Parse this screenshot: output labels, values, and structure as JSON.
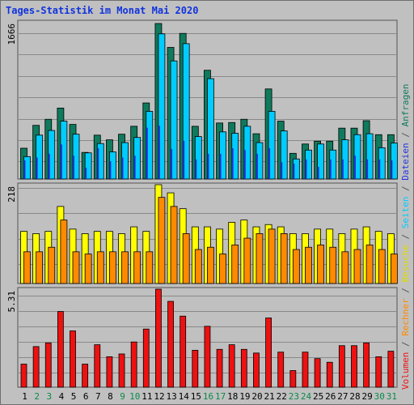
{
  "title": "Tages-Statistik im Monat Mai 2020",
  "colors": {
    "background": "#c0c0c0",
    "frame": "#6f6f6f",
    "gridline": "#8a8a8a",
    "anfragen": "#0f7a5c",
    "dateien": "#00ccff",
    "seiten": "#2233dd",
    "besuche": "#ffff00",
    "rechner": "#ff8a00",
    "volumen": "#ee1111",
    "day_weekday": "#000000",
    "day_weekend": "#0a8a4a"
  },
  "chart_data": [
    {
      "type": "bar",
      "panel": "top",
      "max_label": "1666",
      "ylim": [
        0,
        1666
      ],
      "categories": [
        "1",
        "2",
        "3",
        "4",
        "5",
        "6",
        "7",
        "8",
        "9",
        "10",
        "11",
        "12",
        "13",
        "14",
        "15",
        "16",
        "17",
        "18",
        "19",
        "20",
        "21",
        "22",
        "23",
        "24",
        "25",
        "26",
        "27",
        "28",
        "29",
        "30",
        "31"
      ],
      "series": [
        {
          "name": "Anfragen",
          "values": [
            330,
            575,
            640,
            760,
            585,
            285,
            470,
            420,
            480,
            565,
            815,
            1666,
            1410,
            1560,
            565,
            1165,
            600,
            605,
            640,
            485,
            965,
            620,
            275,
            375,
            405,
            405,
            545,
            545,
            625,
            475,
            475
          ]
        },
        {
          "name": "Dateien",
          "values": [
            240,
            470,
            520,
            620,
            480,
            280,
            380,
            290,
            390,
            445,
            725,
            1555,
            1265,
            1450,
            455,
            1075,
            505,
            490,
            565,
            390,
            725,
            515,
            215,
            310,
            375,
            310,
            420,
            475,
            485,
            335,
            385
          ]
        },
        {
          "name": "Seiten",
          "values": [
            200,
            230,
            270,
            370,
            250,
            120,
            330,
            190,
            230,
            250,
            550,
            570,
            320,
            410,
            210,
            270,
            270,
            330,
            310,
            270,
            330,
            180,
            165,
            210,
            130,
            210,
            210,
            250,
            210,
            210,
            200
          ]
        }
      ]
    },
    {
      "type": "bar",
      "panel": "middle",
      "max_label": "218",
      "ylim": [
        0,
        218
      ],
      "categories": [
        "1",
        "2",
        "3",
        "4",
        "5",
        "6",
        "7",
        "8",
        "9",
        "10",
        "11",
        "12",
        "13",
        "14",
        "15",
        "16",
        "17",
        "18",
        "19",
        "20",
        "21",
        "22",
        "23",
        "24",
        "25",
        "26",
        "27",
        "28",
        "29",
        "30",
        "31"
      ],
      "series": [
        {
          "name": "Besuche",
          "values": [
            115,
            110,
            115,
            170,
            120,
            110,
            115,
            115,
            110,
            125,
            115,
            218,
            200,
            165,
            125,
            125,
            120,
            135,
            140,
            125,
            130,
            125,
            110,
            110,
            120,
            120,
            110,
            120,
            125,
            115,
            110
          ]
        },
        {
          "name": "Rechner",
          "values": [
            70,
            70,
            80,
            140,
            70,
            65,
            70,
            70,
            70,
            70,
            70,
            190,
            170,
            110,
            75,
            80,
            65,
            85,
            100,
            110,
            120,
            110,
            75,
            80,
            85,
            80,
            70,
            75,
            85,
            75,
            65
          ]
        }
      ]
    },
    {
      "type": "bar",
      "panel": "bottom",
      "max_label": "5.31",
      "ylim": [
        0,
        5.31
      ],
      "categories": [
        "1",
        "2",
        "3",
        "4",
        "5",
        "6",
        "7",
        "8",
        "9",
        "10",
        "11",
        "12",
        "13",
        "14",
        "15",
        "16",
        "17",
        "18",
        "19",
        "20",
        "21",
        "22",
        "23",
        "24",
        "25",
        "26",
        "27",
        "28",
        "29",
        "30",
        "31"
      ],
      "series": [
        {
          "name": "Volumen",
          "values": [
            1.25,
            2.2,
            2.4,
            4.1,
            3.05,
            1.25,
            2.3,
            1.65,
            1.8,
            2.45,
            3.15,
            5.31,
            4.65,
            3.85,
            2.0,
            3.3,
            2.05,
            2.3,
            2.05,
            1.85,
            3.75,
            1.9,
            0.9,
            1.9,
            1.55,
            1.35,
            2.25,
            2.25,
            2.4,
            1.65,
            1.95
          ]
        }
      ]
    }
  ],
  "right_axis_labels": [
    {
      "text": "Volumen",
      "color": "#ee1111"
    },
    {
      "text": "/",
      "color": "#555555"
    },
    {
      "text": "Rechner",
      "color": "#ff8a00"
    },
    {
      "text": "/",
      "color": "#555555"
    },
    {
      "text": "Besuche",
      "color": "#dddd00"
    },
    {
      "text": "/",
      "color": "#555555"
    },
    {
      "text": "Seiten",
      "color": "#00ccff"
    },
    {
      "text": "/",
      "color": "#555555"
    },
    {
      "text": "Dateien",
      "color": "#2233dd"
    },
    {
      "text": "/",
      "color": "#555555"
    },
    {
      "text": "Anfragen",
      "color": "#0f7a5c"
    }
  ],
  "weekend_days": [
    "2",
    "3",
    "9",
    "10",
    "16",
    "17",
    "23",
    "24",
    "30",
    "31"
  ]
}
